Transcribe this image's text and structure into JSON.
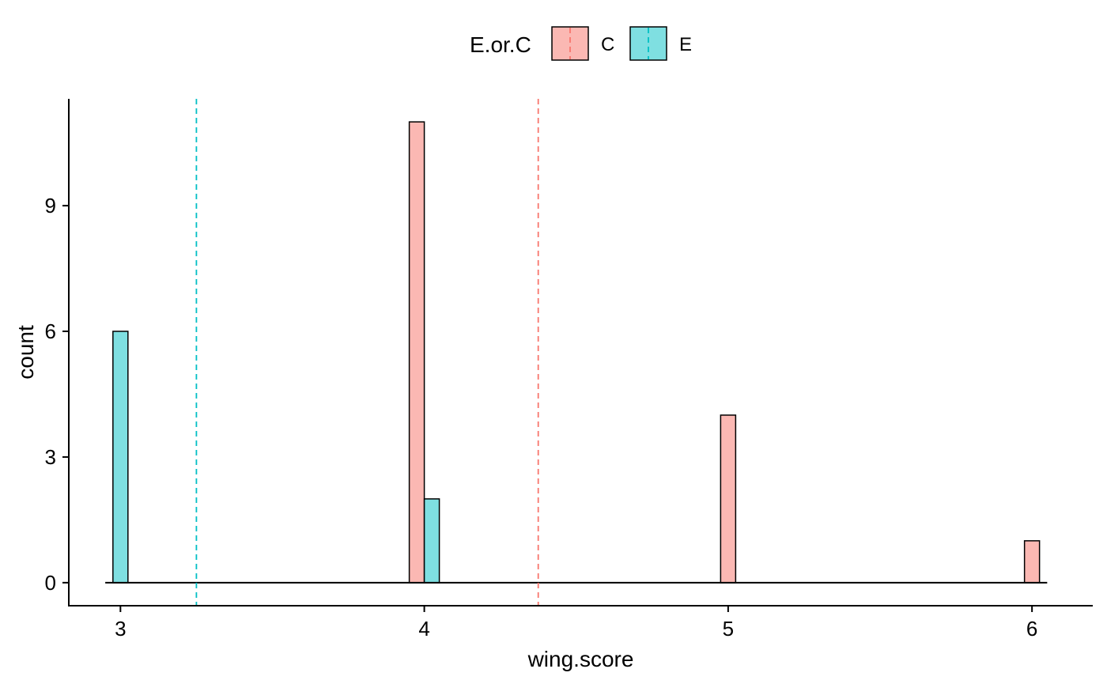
{
  "chart_data": {
    "type": "bar",
    "xlabel": "wing.score",
    "ylabel": "count",
    "xlim": [
      2.83,
      6.2
    ],
    "ylim": [
      -0.55,
      11.55
    ],
    "x_ticks": [
      3,
      4,
      5,
      6
    ],
    "y_ticks": [
      0,
      3,
      6,
      9
    ],
    "grid": false,
    "legend": {
      "title": "E.or.C",
      "position": "top",
      "entries": [
        "C",
        "E"
      ]
    },
    "series": [
      {
        "name": "C",
        "color": "#F8766D",
        "fill": "#FBB8B3",
        "bars": [
          {
            "x": 4,
            "count": 11
          },
          {
            "x": 5,
            "count": 4
          },
          {
            "x": 6,
            "count": 1
          }
        ]
      },
      {
        "name": "E",
        "color": "#00BFC4",
        "fill": "#7FDFE1",
        "bars": [
          {
            "x": 3,
            "count": 6
          },
          {
            "x": 4,
            "count": 2
          }
        ]
      }
    ],
    "mean_lines": [
      {
        "group": "C",
        "x": 4.375,
        "color": "#F8766D"
      },
      {
        "group": "E",
        "x": 3.25,
        "color": "#00BFC4"
      }
    ],
    "baseline": {
      "from": 2.95,
      "to": 6.05
    }
  }
}
